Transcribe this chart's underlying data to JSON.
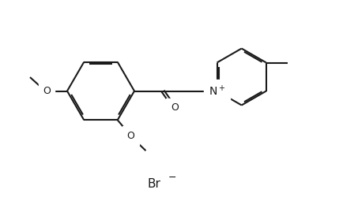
{
  "background_color": "#ffffff",
  "line_color": "#1a1a1a",
  "line_width": 1.5,
  "dbo": 0.04,
  "fs": 9,
  "fig_width": 4.53,
  "fig_height": 2.83,
  "dpi": 100,
  "xlim": [
    0,
    9.06
  ],
  "ylim": [
    0,
    5.66
  ]
}
